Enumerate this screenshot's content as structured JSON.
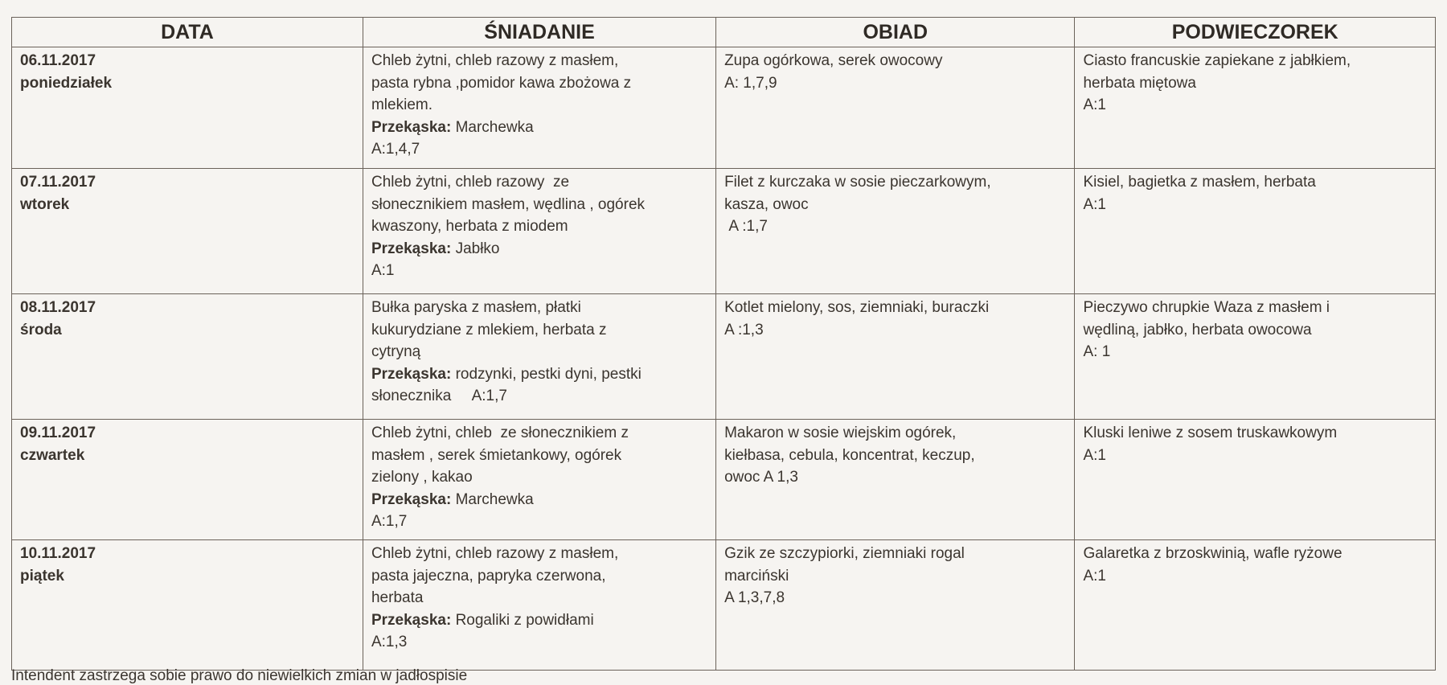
{
  "headers": [
    "DATA",
    "ŚNIADANIE",
    "OBIAD",
    "PODWIECZOREK"
  ],
  "snack_label": "Przekąska:",
  "rows": [
    {
      "date": "06.11.2017",
      "day": "poniedziałek",
      "breakfast": [
        "Chleb żytni, chleb razowy z masłem,",
        "pasta rybna ,pomidor kawa zbożowa z",
        "mlekiem."
      ],
      "snack": "Marchewka",
      "snack_allergens": "A:1,4,7",
      "lunch": [
        "Zupa ogórkowa, serek owocowy",
        "A: 1,7,9"
      ],
      "tea": [
        "Ciasto francuskie zapiekane z jabłkiem,",
        "herbata miętowa",
        "A:1"
      ]
    },
    {
      "date": "07.11.2017",
      "day": "wtorek",
      "breakfast": [
        "Chleb żytni, chleb razowy  ze",
        "słonecznikiem masłem, wędlina , ogórek",
        "kwaszony, herbata z miodem"
      ],
      "snack": "Jabłko",
      "snack_allergens": "A:1",
      "lunch": [
        "Filet z kurczaka w sosie pieczarkowym,",
        "kasza, owoc",
        " A :1,7"
      ],
      "tea": [
        "Kisiel, bagietka z masłem, herbata",
        "A:1"
      ]
    },
    {
      "date": "08.11.2017",
      "day": "środa",
      "breakfast": [
        "Bułka paryska z masłem, płatki",
        "kukurydziane z mlekiem, herbata z",
        "cytryną"
      ],
      "snack": "rodzynki, pestki dyni, pestki słonecznika     A:1,7",
      "snack_allergens": "",
      "lunch": [
        "Kotlet mielony, sos, ziemniaki, buraczki",
        "A :1,3"
      ],
      "tea": [
        "Pieczywo chrupkie Waza z masłem i",
        "wędliną, jabłko, herbata owocowa",
        "A: 1"
      ]
    },
    {
      "date": "09.11.2017",
      "day": "czwartek",
      "breakfast": [
        "Chleb żytni, chleb  ze słonecznikiem z",
        "masłem , serek śmietankowy, ogórek",
        "zielony , kakao"
      ],
      "snack": "Marchewka",
      "snack_allergens": "A:1,7",
      "lunch": [
        "Makaron w sosie wiejskim ogórek,",
        "kiełbasa, cebula, koncentrat, keczup,",
        "owoc A 1,3"
      ],
      "tea": [
        "Kluski leniwe z sosem truskawkowym",
        "A:1"
      ]
    },
    {
      "date": "10.11.2017",
      "day": "piątek",
      "breakfast": [
        "Chleb żytni, chleb razowy z masłem,",
        "pasta jajeczna, papryka czerwona,",
        "herbata"
      ],
      "snack": "Rogaliki z powidłami",
      "snack_allergens": "A:1,3",
      "lunch": [
        "Gzik ze szczypiorki, ziemniaki rogal",
        "marciński",
        "A 1,3,7,8"
      ],
      "tea": [
        "Galaretka z brzoskwinią, wafle ryżowe",
        "A:1"
      ]
    }
  ],
  "footer": "Intendent zastrzega sobie prawo do niewielkich zmian w jadłospisie"
}
